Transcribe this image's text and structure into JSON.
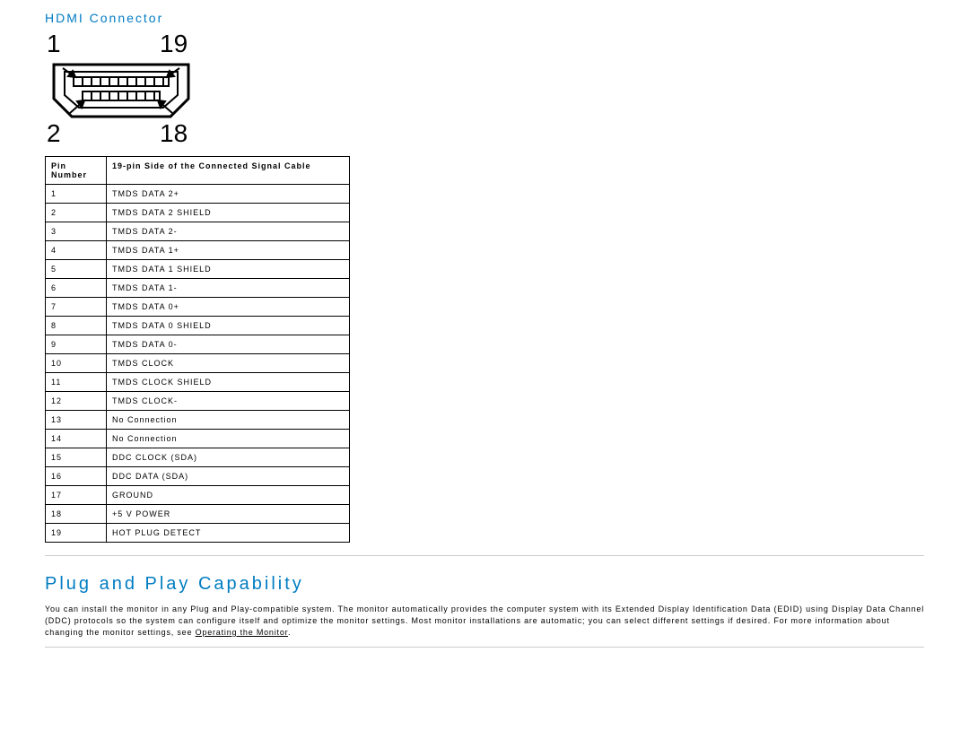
{
  "section1": {
    "title": "HDMI Connector",
    "diagram": {
      "top_left": "1",
      "top_right": "19",
      "bottom_left": "2",
      "bottom_right": "18"
    },
    "table": {
      "headers": [
        "Pin Number",
        "19-pin Side of the Connected Signal Cable"
      ],
      "rows": [
        [
          "1",
          "TMDS DATA 2+"
        ],
        [
          "2",
          "TMDS DATA 2 SHIELD"
        ],
        [
          "3",
          "TMDS DATA 2-"
        ],
        [
          "4",
          "TMDS DATA 1+"
        ],
        [
          "5",
          "TMDS DATA 1 SHIELD"
        ],
        [
          "6",
          "TMDS DATA 1-"
        ],
        [
          "7",
          "TMDS DATA 0+"
        ],
        [
          "8",
          "TMDS DATA 0 SHIELD"
        ],
        [
          "9",
          "TMDS DATA 0-"
        ],
        [
          "10",
          "TMDS CLOCK"
        ],
        [
          "11",
          "TMDS CLOCK SHIELD"
        ],
        [
          "12",
          "TMDS CLOCK-"
        ],
        [
          "13",
          "No Connection"
        ],
        [
          "14",
          "No Connection"
        ],
        [
          "15",
          "DDC CLOCK (SDA)"
        ],
        [
          "16",
          "DDC DATA (SDA)"
        ],
        [
          "17",
          "GROUND"
        ],
        [
          "18",
          "+5 V POWER"
        ],
        [
          "19",
          "HOT PLUG DETECT"
        ]
      ]
    }
  },
  "section2": {
    "title": "Plug and Play Capability",
    "paragraph_pre": "You can install the monitor in any Plug and Play-compatible system. The monitor automatically provides the computer system with its Extended Display Identification Data (EDID) using Display Data Channel (DDC) protocols so the system can configure itself and optimize the monitor settings. Most monitor installations are automatic; you can select different settings if desired. For more information about changing the monitor settings, see ",
    "link_text": "Operating the Monitor",
    "paragraph_post": "."
  },
  "style": {
    "title_color": "#007cc2",
    "text_color": "#000000",
    "border_color": "#000000",
    "divider_color": "#cccccc",
    "background": "#ffffff"
  }
}
